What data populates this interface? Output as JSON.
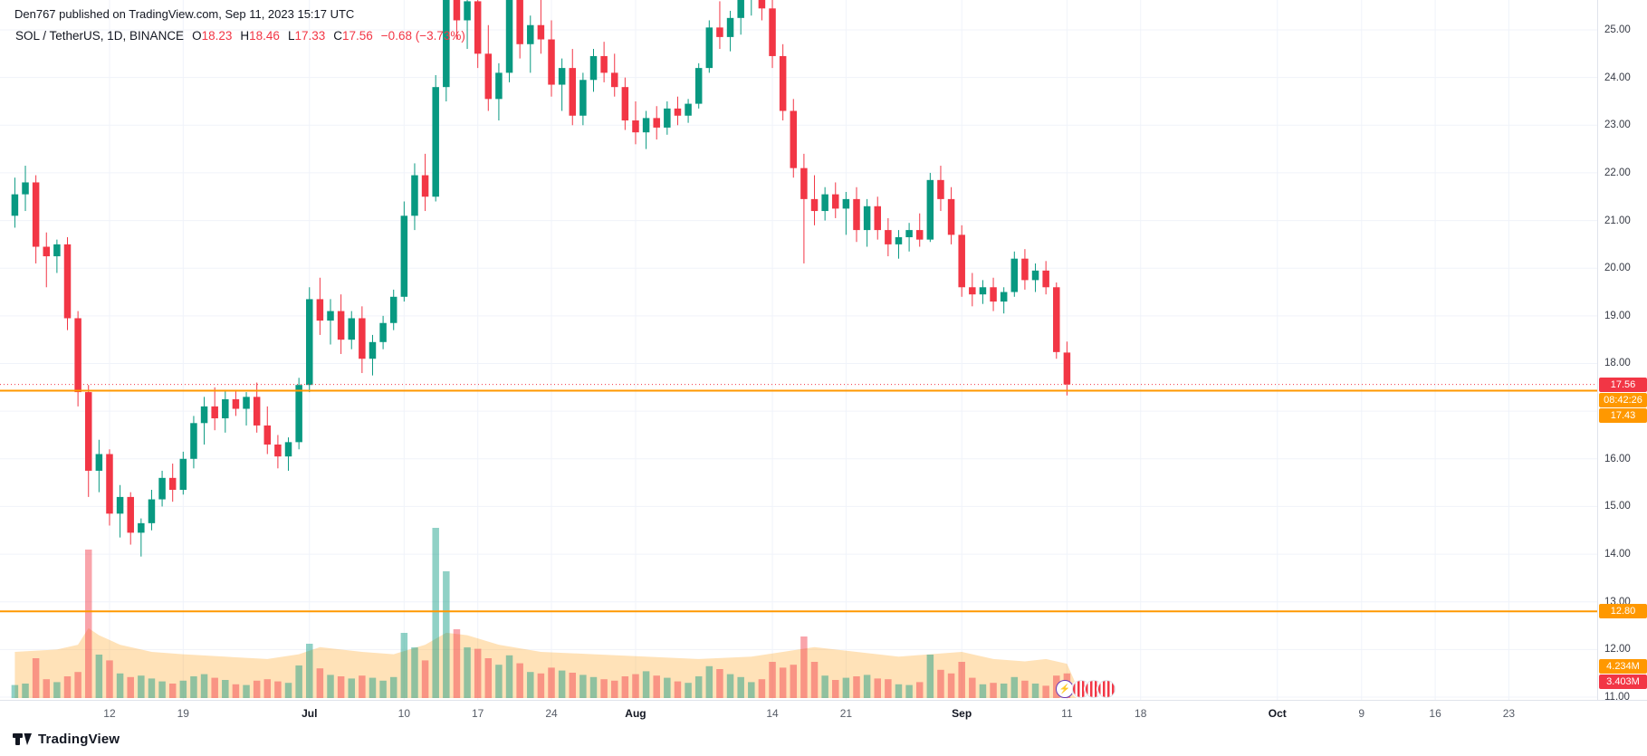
{
  "header": {
    "attribution": "Den767 published on TradingView.com, Sep 11, 2023 15:17 UTC"
  },
  "legend": {
    "title": "SOL / TetherUS, 1D, BINANCE",
    "o_label": "O",
    "o": "18.23",
    "h_label": "H",
    "h": "18.46",
    "l_label": "L",
    "l": "17.33",
    "c_label": "C",
    "c": "17.56",
    "change": "−0.68 (−3.73%)"
  },
  "price_axis": {
    "ticks": [
      "25.00",
      "24.00",
      "23.00",
      "22.00",
      "21.00",
      "20.00",
      "19.00",
      "18.00",
      "16.00",
      "15.00",
      "14.00",
      "13.00",
      "12.00",
      "11.00"
    ],
    "badges": {
      "last_price": "17.56",
      "countdown": "08:42:26",
      "support_line": "17.43",
      "lower_line": "12.80",
      "volume_ma": "4.234M",
      "volume_current": "3.403M"
    }
  },
  "time_axis": {
    "ticks": [
      {
        "label": "12",
        "i": 9
      },
      {
        "label": "19",
        "i": 16
      },
      {
        "label": "Jul",
        "i": 28,
        "major": true
      },
      {
        "label": "10",
        "i": 37
      },
      {
        "label": "17",
        "i": 44
      },
      {
        "label": "24",
        "i": 51
      },
      {
        "label": "Aug",
        "i": 59,
        "major": true
      },
      {
        "label": "14",
        "i": 72
      },
      {
        "label": "21",
        "i": 79
      },
      {
        "label": "Sep",
        "i": 90,
        "major": true
      },
      {
        "label": "11",
        "i": 100
      },
      {
        "label": "18",
        "i": 107
      },
      {
        "label": "Oct",
        "i": 120,
        "major": true
      },
      {
        "label": "9",
        "i": 128
      },
      {
        "label": "16",
        "i": 135
      },
      {
        "label": "23",
        "i": 142
      }
    ]
  },
  "chart_data": {
    "type": "candlestick",
    "symbol": "SOL/USDT",
    "exchange": "BINANCE",
    "interval": "1D",
    "ylim": [
      11,
      25.63
    ],
    "grid": true,
    "up_color": "#089981",
    "down_color": "#f23645",
    "last_price": 17.56,
    "levels": [
      {
        "value": 17.43,
        "color": "#ff9800"
      },
      {
        "value": 12.8,
        "color": "#ff9800"
      }
    ],
    "columns": [
      "date",
      "open",
      "high",
      "low",
      "close",
      "volume_m"
    ],
    "candles": [
      [
        "6/3",
        21.1,
        21.9,
        20.85,
        21.55,
        1.8
      ],
      [
        "6/4",
        21.55,
        22.15,
        21.2,
        21.8,
        2.0
      ],
      [
        "6/5",
        21.8,
        21.95,
        20.1,
        20.45,
        5.5
      ],
      [
        "6/6",
        20.45,
        20.75,
        19.6,
        20.25,
        2.6
      ],
      [
        "6/7",
        20.25,
        20.6,
        19.9,
        20.5,
        2.2
      ],
      [
        "6/8",
        20.5,
        20.65,
        18.7,
        18.95,
        3.0
      ],
      [
        "6/9",
        18.95,
        19.1,
        17.1,
        17.4,
        3.6
      ],
      [
        "6/10",
        17.4,
        17.55,
        15.2,
        15.75,
        20.5
      ],
      [
        "6/11",
        15.75,
        16.4,
        15.3,
        16.1,
        6.0
      ],
      [
        "6/12",
        16.1,
        16.2,
        14.6,
        14.85,
        5.2
      ],
      [
        "6/13",
        14.85,
        15.45,
        14.35,
        15.2,
        3.4
      ],
      [
        "6/14",
        15.2,
        15.3,
        14.2,
        14.45,
        2.9
      ],
      [
        "6/15",
        14.45,
        14.75,
        13.95,
        14.65,
        3.1
      ],
      [
        "6/16",
        14.65,
        15.35,
        14.5,
        15.15,
        2.7
      ],
      [
        "6/17",
        15.15,
        15.75,
        15.0,
        15.6,
        2.3
      ],
      [
        "6/18",
        15.6,
        15.9,
        15.1,
        15.35,
        2.0
      ],
      [
        "6/19",
        15.35,
        16.15,
        15.25,
        16.0,
        2.4
      ],
      [
        "6/20",
        16.0,
        16.9,
        15.8,
        16.75,
        3.0
      ],
      [
        "6/21",
        16.75,
        17.3,
        16.3,
        17.1,
        3.3
      ],
      [
        "6/22",
        17.1,
        17.5,
        16.6,
        16.85,
        2.8
      ],
      [
        "6/23",
        16.85,
        17.45,
        16.55,
        17.25,
        2.5
      ],
      [
        "6/24",
        17.25,
        17.45,
        16.9,
        17.05,
        1.9
      ],
      [
        "6/25",
        17.05,
        17.4,
        16.7,
        17.3,
        1.8
      ],
      [
        "6/26",
        17.3,
        17.6,
        16.55,
        16.7,
        2.4
      ],
      [
        "6/27",
        16.7,
        17.1,
        16.1,
        16.3,
        2.6
      ],
      [
        "6/28",
        16.3,
        16.5,
        15.8,
        16.05,
        2.3
      ],
      [
        "6/29",
        16.05,
        16.45,
        15.75,
        16.35,
        2.1
      ],
      [
        "6/30",
        16.35,
        17.7,
        16.2,
        17.55,
        4.5
      ],
      [
        "7/1",
        17.55,
        19.6,
        17.4,
        19.35,
        7.5
      ],
      [
        "7/2",
        19.35,
        19.8,
        18.6,
        18.9,
        4.1
      ],
      [
        "7/3",
        18.9,
        19.35,
        18.4,
        19.1,
        3.2
      ],
      [
        "7/4",
        19.1,
        19.45,
        18.2,
        18.5,
        3.0
      ],
      [
        "7/5",
        18.5,
        19.1,
        18.3,
        18.95,
        2.7
      ],
      [
        "7/6",
        18.95,
        19.2,
        17.8,
        18.1,
        3.1
      ],
      [
        "7/7",
        18.1,
        18.6,
        17.75,
        18.45,
        2.8
      ],
      [
        "7/8",
        18.45,
        19.0,
        18.3,
        18.85,
        2.4
      ],
      [
        "7/9",
        18.85,
        19.55,
        18.7,
        19.4,
        2.9
      ],
      [
        "7/10",
        19.4,
        21.4,
        19.3,
        21.1,
        9.0
      ],
      [
        "7/11",
        21.1,
        22.2,
        20.8,
        21.95,
        7.0
      ],
      [
        "7/12",
        21.95,
        22.4,
        21.2,
        21.5,
        5.2
      ],
      [
        "7/13",
        21.5,
        24.05,
        21.4,
        23.8,
        23.5
      ],
      [
        "7/14",
        23.8,
        26.5,
        23.5,
        26.0,
        17.5
      ],
      [
        "7/15",
        26.0,
        26.8,
        24.8,
        25.2,
        9.5
      ],
      [
        "7/16",
        25.2,
        25.9,
        24.6,
        25.6,
        7.0
      ],
      [
        "7/17",
        25.6,
        26.2,
        24.2,
        24.5,
        6.8
      ],
      [
        "7/18",
        24.5,
        25.1,
        23.3,
        23.55,
        5.5
      ],
      [
        "7/19",
        23.55,
        24.3,
        23.1,
        24.1,
        4.6
      ],
      [
        "7/20",
        24.1,
        26.0,
        23.9,
        25.7,
        5.9
      ],
      [
        "7/21",
        25.7,
        26.1,
        24.4,
        24.7,
        4.8
      ],
      [
        "7/22",
        24.7,
        25.3,
        24.1,
        25.1,
        3.6
      ],
      [
        "7/23",
        25.1,
        25.8,
        24.5,
        24.8,
        3.4
      ],
      [
        "7/24",
        24.8,
        25.2,
        23.6,
        23.85,
        4.2
      ],
      [
        "7/25",
        23.85,
        24.4,
        23.3,
        24.2,
        3.8
      ],
      [
        "7/26",
        24.2,
        24.6,
        23.0,
        23.2,
        3.5
      ],
      [
        "7/27",
        23.2,
        24.1,
        23.0,
        23.95,
        3.2
      ],
      [
        "7/28",
        23.95,
        24.6,
        23.7,
        24.45,
        2.9
      ],
      [
        "7/29",
        24.45,
        24.75,
        23.9,
        24.1,
        2.6
      ],
      [
        "7/30",
        24.1,
        24.5,
        23.6,
        23.8,
        2.4
      ],
      [
        "7/31",
        23.8,
        24.0,
        22.9,
        23.1,
        3.0
      ],
      [
        "8/1",
        23.1,
        23.5,
        22.6,
        22.85,
        3.3
      ],
      [
        "8/2",
        22.85,
        23.3,
        22.5,
        23.15,
        3.7
      ],
      [
        "8/3",
        23.15,
        23.4,
        22.7,
        22.95,
        3.1
      ],
      [
        "8/4",
        22.95,
        23.5,
        22.8,
        23.35,
        2.8
      ],
      [
        "8/5",
        23.35,
        23.6,
        23.0,
        23.2,
        2.3
      ],
      [
        "8/6",
        23.2,
        23.55,
        23.05,
        23.45,
        2.1
      ],
      [
        "8/7",
        23.45,
        24.3,
        23.35,
        24.2,
        3.0
      ],
      [
        "8/8",
        24.2,
        25.2,
        24.1,
        25.05,
        4.4
      ],
      [
        "8/9",
        25.05,
        25.6,
        24.6,
        24.85,
        4.0
      ],
      [
        "8/10",
        24.85,
        25.4,
        24.55,
        25.25,
        3.3
      ],
      [
        "8/11",
        25.25,
        26.0,
        24.9,
        25.7,
        2.9
      ],
      [
        "8/12",
        25.7,
        26.2,
        25.3,
        25.95,
        2.2
      ],
      [
        "8/13",
        25.95,
        26.3,
        25.2,
        25.45,
        2.6
      ],
      [
        "8/14",
        25.45,
        25.75,
        24.2,
        24.45,
        5.0
      ],
      [
        "8/15",
        24.45,
        24.7,
        23.1,
        23.3,
        4.2
      ],
      [
        "8/16",
        23.3,
        23.55,
        21.9,
        22.1,
        4.6
      ],
      [
        "8/17",
        22.1,
        22.4,
        20.1,
        21.45,
        8.5
      ],
      [
        "8/18",
        21.45,
        21.95,
        20.9,
        21.2,
        5.0
      ],
      [
        "8/19",
        21.2,
        21.7,
        21.0,
        21.55,
        3.1
      ],
      [
        "8/20",
        21.55,
        21.8,
        21.05,
        21.25,
        2.5
      ],
      [
        "8/21",
        21.25,
        21.6,
        20.7,
        21.45,
        2.8
      ],
      [
        "8/22",
        21.45,
        21.7,
        20.55,
        20.8,
        3.0
      ],
      [
        "8/23",
        20.8,
        21.45,
        20.45,
        21.3,
        3.2
      ],
      [
        "8/24",
        21.3,
        21.5,
        20.6,
        20.8,
        2.7
      ],
      [
        "8/25",
        20.8,
        21.05,
        20.25,
        20.5,
        2.6
      ],
      [
        "8/26",
        20.5,
        20.8,
        20.2,
        20.65,
        1.9
      ],
      [
        "8/27",
        20.65,
        20.95,
        20.35,
        20.8,
        1.8
      ],
      [
        "8/28",
        20.8,
        21.15,
        20.45,
        20.6,
        2.2
      ],
      [
        "8/29",
        20.6,
        22.0,
        20.55,
        21.85,
        6.0
      ],
      [
        "8/30",
        21.85,
        22.15,
        21.2,
        21.45,
        3.9
      ],
      [
        "8/31",
        21.45,
        21.7,
        20.5,
        20.7,
        3.4
      ],
      [
        "9/1",
        20.7,
        20.9,
        19.4,
        19.6,
        5.0
      ],
      [
        "9/2",
        19.6,
        19.9,
        19.2,
        19.45,
        2.8
      ],
      [
        "9/3",
        19.45,
        19.75,
        19.25,
        19.6,
        1.9
      ],
      [
        "9/4",
        19.6,
        19.8,
        19.1,
        19.3,
        2.1
      ],
      [
        "9/5",
        19.3,
        19.6,
        19.05,
        19.5,
        2.0
      ],
      [
        "9/6",
        19.5,
        20.35,
        19.4,
        20.2,
        2.9
      ],
      [
        "9/7",
        20.2,
        20.4,
        19.55,
        19.75,
        2.4
      ],
      [
        "9/8",
        19.75,
        20.1,
        19.5,
        19.95,
        2.0
      ],
      [
        "9/9",
        19.95,
        20.15,
        19.45,
        19.6,
        1.7
      ],
      [
        "9/10",
        19.6,
        19.7,
        18.1,
        18.24,
        3.1
      ],
      [
        "9/11",
        18.23,
        18.46,
        17.33,
        17.56,
        3.403
      ]
    ],
    "volume_ma_area": {
      "color": "#ff9800",
      "opacity": 0.28,
      "points": [
        [
          0,
          11.95
        ],
        [
          4,
          12.0
        ],
        [
          6,
          12.1
        ],
        [
          7,
          12.45
        ],
        [
          8,
          12.3
        ],
        [
          10,
          12.1
        ],
        [
          13,
          11.95
        ],
        [
          16,
          11.9
        ],
        [
          20,
          11.85
        ],
        [
          24,
          11.8
        ],
        [
          27,
          11.9
        ],
        [
          29,
          12.05
        ],
        [
          33,
          11.95
        ],
        [
          36,
          11.9
        ],
        [
          39,
          12.1
        ],
        [
          41,
          12.35
        ],
        [
          43,
          12.3
        ],
        [
          46,
          12.1
        ],
        [
          50,
          11.95
        ],
        [
          55,
          11.9
        ],
        [
          60,
          11.85
        ],
        [
          65,
          11.8
        ],
        [
          70,
          11.85
        ],
        [
          73,
          11.95
        ],
        [
          76,
          12.05
        ],
        [
          80,
          11.95
        ],
        [
          84,
          11.85
        ],
        [
          87,
          11.9
        ],
        [
          90,
          11.95
        ],
        [
          93,
          11.8
        ],
        [
          96,
          11.75
        ],
        [
          98,
          11.8
        ],
        [
          100,
          11.7
        ],
        [
          101,
          11.2
        ]
      ]
    }
  },
  "reactions": {
    "flash": "⚡"
  },
  "footer": {
    "brand": "TradingView"
  }
}
